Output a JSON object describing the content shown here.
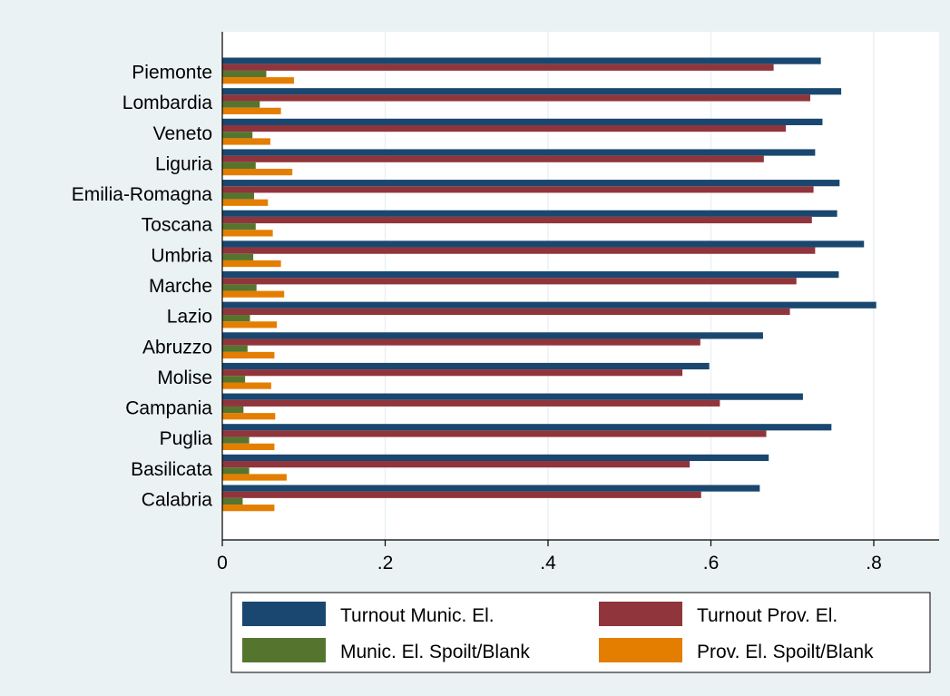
{
  "chart_data": {
    "type": "bar",
    "orientation": "horizontal",
    "categories": [
      "Piemonte",
      "Lombardia",
      "Veneto",
      "Liguria",
      "Emilia-Romagna",
      "Toscana",
      "Umbria",
      "Marche",
      "Lazio",
      "Abruzzo",
      "Molise",
      "Campania",
      "Puglia",
      "Basilicata",
      "Calabria"
    ],
    "series": [
      {
        "name": "Turnout Munic. El.",
        "color": "#1a476f",
        "values": [
          0.735,
          0.76,
          0.737,
          0.728,
          0.758,
          0.755,
          0.788,
          0.757,
          0.803,
          0.664,
          0.598,
          0.713,
          0.748,
          0.671,
          0.66
        ]
      },
      {
        "name": "Turnout Prov. El.",
        "color": "#90353b",
        "values": [
          0.677,
          0.722,
          0.692,
          0.665,
          0.726,
          0.724,
          0.728,
          0.705,
          0.697,
          0.587,
          0.565,
          0.611,
          0.668,
          0.574,
          0.588
        ]
      },
      {
        "name": "Munic. El. Spoilt/Blank",
        "color": "#55752f",
        "values": [
          0.054,
          0.046,
          0.037,
          0.041,
          0.039,
          0.041,
          0.038,
          0.042,
          0.034,
          0.031,
          0.028,
          0.026,
          0.033,
          0.033,
          0.025
        ]
      },
      {
        "name": "Prov. El. Spoilt/Blank",
        "color": "#e37e00",
        "values": [
          0.088,
          0.072,
          0.059,
          0.086,
          0.056,
          0.062,
          0.072,
          0.076,
          0.067,
          0.064,
          0.06,
          0.065,
          0.064,
          0.079,
          0.064
        ]
      }
    ],
    "xlim": [
      0,
      0.88
    ],
    "xticks": [
      0,
      0.2,
      0.4,
      0.6,
      0.8
    ],
    "xtick_labels": [
      "0",
      ".2",
      ".4",
      ".6",
      ".8"
    ],
    "title": "",
    "xlabel": "",
    "ylabel": "",
    "grid": "vertical",
    "legend_position": "bottom",
    "colors": {
      "outer_background": "#eaf2f3",
      "plot_background": "#ffffff",
      "gridline": "#eaf2f3",
      "axis": "#000000"
    }
  }
}
